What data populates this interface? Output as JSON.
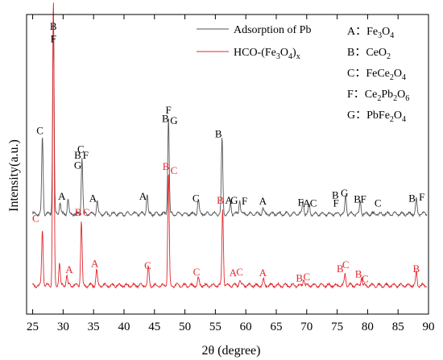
{
  "chart_data": {
    "type": "line",
    "xlabel": "2θ (degree)",
    "ylabel": "Intensity(a.u.)",
    "xlim": [
      24,
      90
    ],
    "x_ticks": [
      25,
      30,
      35,
      40,
      45,
      50,
      55,
      60,
      65,
      70,
      75,
      80,
      85,
      90
    ],
    "grid": false,
    "legend_position": "top-right",
    "series": [
      {
        "name": "Adsorption of Pb",
        "color": "#555555",
        "baseline": 0.7,
        "peaks": [
          {
            "x": 26.6,
            "h": 0.75
          },
          {
            "x": 28.4,
            "h": 1.95
          },
          {
            "x": 29.5,
            "h": 0.12
          },
          {
            "x": 30.8,
            "h": 0.14
          },
          {
            "x": 33.1,
            "h": 0.55
          },
          {
            "x": 35.6,
            "h": 0.12
          },
          {
            "x": 43.8,
            "h": 0.2
          },
          {
            "x": 47.3,
            "h": 0.95
          },
          {
            "x": 52.2,
            "h": 0.14
          },
          {
            "x": 56.1,
            "h": 0.74
          },
          {
            "x": 57.5,
            "h": 0.1
          },
          {
            "x": 59.0,
            "h": 0.14
          },
          {
            "x": 62.8,
            "h": 0.06
          },
          {
            "x": 69.4,
            "h": 0.13
          },
          {
            "x": 70.4,
            "h": 0.08
          },
          {
            "x": 76.4,
            "h": 0.18
          },
          {
            "x": 78.8,
            "h": 0.12
          },
          {
            "x": 88.0,
            "h": 0.14
          }
        ]
      },
      {
        "name": "HCO-(Fe3O4)x",
        "color": "#e3262b",
        "baseline": 0.0,
        "peaks": [
          {
            "x": 26.6,
            "h": 0.55
          },
          {
            "x": 28.4,
            "h": 2.8
          },
          {
            "x": 29.4,
            "h": 0.22
          },
          {
            "x": 30.6,
            "h": 0.1
          },
          {
            "x": 33.0,
            "h": 0.63
          },
          {
            "x": 35.5,
            "h": 0.15
          },
          {
            "x": 44.0,
            "h": 0.18
          },
          {
            "x": 47.3,
            "h": 1.1
          },
          {
            "x": 52.2,
            "h": 0.07
          },
          {
            "x": 56.2,
            "h": 0.75
          },
          {
            "x": 59.0,
            "h": 0.06
          },
          {
            "x": 62.9,
            "h": 0.05
          },
          {
            "x": 69.5,
            "h": 0.07
          },
          {
            "x": 76.3,
            "h": 0.12
          },
          {
            "x": 79.0,
            "h": 0.09
          },
          {
            "x": 88.0,
            "h": 0.13
          }
        ]
      }
    ],
    "legend_phases": [
      {
        "letter": "A",
        "sep": "：",
        "formula": [
          [
            "Fe",
            ""
          ],
          [
            "3",
            "sub"
          ],
          [
            "O",
            ""
          ],
          [
            "4",
            "sub"
          ]
        ]
      },
      {
        "letter": "B",
        "sep": "：",
        "formula": [
          [
            "CeO",
            ""
          ],
          [
            "2",
            "sub"
          ]
        ]
      },
      {
        "letter": "C",
        "sep": "：",
        "formula": [
          [
            "FeCe",
            ""
          ],
          [
            "2",
            "sub"
          ],
          [
            "O",
            ""
          ],
          [
            "4",
            "sub"
          ]
        ]
      },
      {
        "letter": "F",
        "sep": "：",
        "formula": [
          [
            "Ce",
            ""
          ],
          [
            "2",
            "sub"
          ],
          [
            "Pb",
            ""
          ],
          [
            "2",
            "sub"
          ],
          [
            "O",
            ""
          ],
          [
            "6",
            "sub"
          ]
        ]
      },
      {
        "letter": "G",
        "sep": "：",
        "formula": [
          [
            "PbFe",
            ""
          ],
          [
            "2",
            "sub"
          ],
          [
            "O",
            ""
          ],
          [
            "4",
            "sub"
          ]
        ]
      }
    ],
    "annotations_top": [
      {
        "x": 28.4,
        "y": 2.5,
        "text": "B"
      },
      {
        "x": 28.4,
        "y": 2.38,
        "text": "F"
      },
      {
        "x": 26.2,
        "y": 1.48,
        "text": "C"
      },
      {
        "x": 32.9,
        "y": 1.3,
        "text": "C"
      },
      {
        "x": 32.4,
        "y": 1.24,
        "text": "B"
      },
      {
        "x": 33.7,
        "y": 1.24,
        "text": "F"
      },
      {
        "x": 32.4,
        "y": 1.14,
        "text": "G"
      },
      {
        "x": 29.8,
        "y": 0.84,
        "text": "A"
      },
      {
        "x": 34.9,
        "y": 0.82,
        "text": "A"
      },
      {
        "x": 43.1,
        "y": 0.84,
        "text": "A"
      },
      {
        "x": 47.3,
        "y": 1.68,
        "text": "F"
      },
      {
        "x": 46.8,
        "y": 1.6,
        "text": "B"
      },
      {
        "x": 48.2,
        "y": 1.58,
        "text": "G"
      },
      {
        "x": 51.8,
        "y": 0.82,
        "text": "C"
      },
      {
        "x": 55.5,
        "y": 1.45,
        "text": "B"
      },
      {
        "x": 57.2,
        "y": 0.8,
        "text": "A"
      },
      {
        "x": 58.1,
        "y": 0.8,
        "text": "G"
      },
      {
        "x": 59.8,
        "y": 0.79,
        "text": "F"
      },
      {
        "x": 62.8,
        "y": 0.79,
        "text": "A"
      },
      {
        "x": 69.0,
        "y": 0.78,
        "text": "F"
      },
      {
        "x": 70.0,
        "y": 0.77,
        "text": "A"
      },
      {
        "x": 71.1,
        "y": 0.77,
        "text": "C"
      },
      {
        "x": 74.7,
        "y": 0.85,
        "text": "B"
      },
      {
        "x": 76.2,
        "y": 0.87,
        "text": "G"
      },
      {
        "x": 74.8,
        "y": 0.77,
        "text": "F"
      },
      {
        "x": 78.3,
        "y": 0.81,
        "text": "B"
      },
      {
        "x": 79.3,
        "y": 0.81,
        "text": "F"
      },
      {
        "x": 81.7,
        "y": 0.77,
        "text": "C"
      },
      {
        "x": 87.3,
        "y": 0.82,
        "text": "B"
      },
      {
        "x": 88.9,
        "y": 0.83,
        "text": "F"
      }
    ],
    "annotations_bottom": [
      {
        "x": 25.5,
        "y": 0.62,
        "text": "C"
      },
      {
        "x": 31.0,
        "y": 0.12,
        "text": "A"
      },
      {
        "x": 32.5,
        "y": 0.68,
        "text": "B"
      },
      {
        "x": 33.8,
        "y": 0.68,
        "text": "C"
      },
      {
        "x": 35.2,
        "y": 0.18,
        "text": "A"
      },
      {
        "x": 43.9,
        "y": 0.16,
        "text": "C"
      },
      {
        "x": 46.9,
        "y": 1.13,
        "text": "B"
      },
      {
        "x": 48.2,
        "y": 1.09,
        "text": "C"
      },
      {
        "x": 51.9,
        "y": 0.1,
        "text": "C"
      },
      {
        "x": 55.8,
        "y": 0.8,
        "text": "B"
      },
      {
        "x": 57.9,
        "y": 0.09,
        "text": "A"
      },
      {
        "x": 59.0,
        "y": 0.1,
        "text": "C"
      },
      {
        "x": 62.8,
        "y": 0.09,
        "text": "A"
      },
      {
        "x": 68.8,
        "y": 0.04,
        "text": "B"
      },
      {
        "x": 70.0,
        "y": 0.05,
        "text": "C"
      },
      {
        "x": 75.5,
        "y": 0.13,
        "text": "B"
      },
      {
        "x": 76.4,
        "y": 0.17,
        "text": "C"
      },
      {
        "x": 78.5,
        "y": 0.08,
        "text": "B"
      },
      {
        "x": 79.6,
        "y": 0.03,
        "text": "C"
      },
      {
        "x": 88.0,
        "y": 0.13,
        "text": "B"
      }
    ]
  }
}
